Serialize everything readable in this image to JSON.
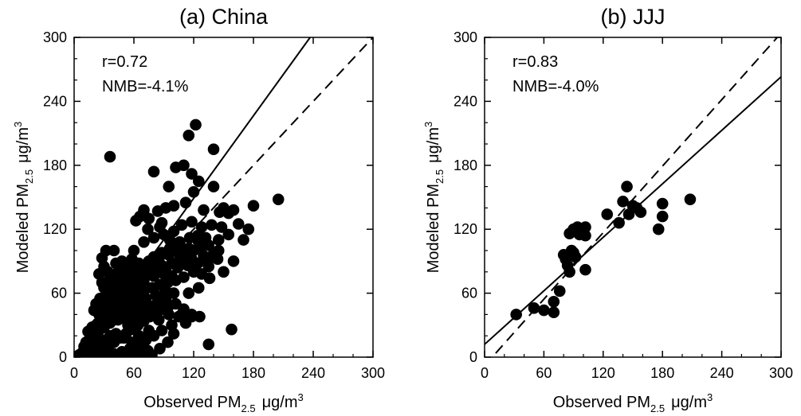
{
  "chart_data": [
    {
      "type": "scatter",
      "title": "(a) China",
      "xlabel": {
        "main": "Observed PM",
        "sub": "2.5",
        "unit": "μg/m",
        "sup": "3"
      },
      "ylabel": {
        "main": "Modeled PM",
        "sub": "2.5",
        "unit": "μg/m",
        "sup": "3"
      },
      "xlim": [
        0,
        300
      ],
      "ylim": [
        0,
        300
      ],
      "xticks": [
        "0",
        "60",
        "120",
        "180",
        "240",
        "300"
      ],
      "yticks": [
        "0",
        "60",
        "120",
        "180",
        "240",
        "300"
      ],
      "annotations": [
        "r=0.72",
        "NMB=-4.1%"
      ],
      "lines": [
        {
          "style": "solid",
          "points": [
            [
              0,
              -6
            ],
            [
              240,
              304
            ]
          ]
        },
        {
          "style": "dashed",
          "points": [
            [
              0,
              0
            ],
            [
              300,
              300
            ]
          ]
        }
      ],
      "points": [
        [
          36,
          188
        ],
        [
          122,
          218
        ],
        [
          115,
          208
        ],
        [
          140,
          195
        ],
        [
          110,
          180
        ],
        [
          102,
          178
        ],
        [
          118,
          172
        ],
        [
          80,
          174
        ],
        [
          95,
          160
        ],
        [
          125,
          165
        ],
        [
          140,
          160
        ],
        [
          120,
          155
        ],
        [
          205,
          148
        ],
        [
          180,
          142
        ],
        [
          160,
          138
        ],
        [
          150,
          140
        ],
        [
          146,
          136
        ],
        [
          155,
          135
        ],
        [
          130,
          138
        ],
        [
          112,
          145
        ],
        [
          100,
          142
        ],
        [
          92,
          140
        ],
        [
          84,
          137
        ],
        [
          70,
          138
        ],
        [
          66,
          132
        ],
        [
          62,
          128
        ],
        [
          75,
          130
        ],
        [
          88,
          126
        ],
        [
          108,
          124
        ],
        [
          118,
          127
        ],
        [
          128,
          122
        ],
        [
          138,
          124
        ],
        [
          148,
          122
        ],
        [
          175,
          120
        ],
        [
          170,
          110
        ],
        [
          145,
          110
        ],
        [
          135,
          105
        ],
        [
          125,
          108
        ],
        [
          115,
          102
        ],
        [
          105,
          98
        ],
        [
          95,
          96
        ],
        [
          85,
          92
        ],
        [
          75,
          90
        ],
        [
          65,
          88
        ],
        [
          55,
          85
        ],
        [
          45,
          82
        ],
        [
          40,
          100
        ],
        [
          32,
          100
        ],
        [
          28,
          93
        ],
        [
          30,
          85
        ],
        [
          25,
          78
        ],
        [
          28,
          70
        ],
        [
          35,
          72
        ],
        [
          42,
          75
        ],
        [
          50,
          78
        ],
        [
          58,
          80
        ],
        [
          68,
          82
        ],
        [
          78,
          84
        ],
        [
          88,
          86
        ],
        [
          98,
          88
        ],
        [
          108,
          90
        ],
        [
          118,
          92
        ],
        [
          130,
          95
        ],
        [
          140,
          97
        ],
        [
          90,
          78
        ],
        [
          80,
          76
        ],
        [
          70,
          72
        ],
        [
          60,
          70
        ],
        [
          52,
          66
        ],
        [
          45,
          64
        ],
        [
          38,
          60
        ],
        [
          32,
          58
        ],
        [
          26,
          55
        ],
        [
          22,
          50
        ],
        [
          20,
          44
        ],
        [
          25,
          40
        ],
        [
          30,
          38
        ],
        [
          35,
          42
        ],
        [
          40,
          46
        ],
        [
          48,
          50
        ],
        [
          55,
          54
        ],
        [
          62,
          58
        ],
        [
          70,
          62
        ],
        [
          78,
          65
        ],
        [
          86,
          68
        ],
        [
          94,
          70
        ],
        [
          102,
          72
        ],
        [
          110,
          75
        ],
        [
          120,
          80
        ],
        [
          128,
          78
        ],
        [
          136,
          74
        ],
        [
          150,
          80
        ],
        [
          160,
          90
        ],
        [
          100,
          60
        ],
        [
          92,
          55
        ],
        [
          84,
          52
        ],
        [
          76,
          48
        ],
        [
          68,
          45
        ],
        [
          60,
          42
        ],
        [
          52,
          38
        ],
        [
          44,
          35
        ],
        [
          36,
          32
        ],
        [
          30,
          28
        ],
        [
          25,
          25
        ],
        [
          20,
          22
        ],
        [
          16,
          18
        ],
        [
          12,
          14
        ],
        [
          10,
          10
        ],
        [
          14,
          6
        ],
        [
          20,
          4
        ],
        [
          28,
          6
        ],
        [
          34,
          10
        ],
        [
          40,
          14
        ],
        [
          46,
          18
        ],
        [
          52,
          22
        ],
        [
          58,
          26
        ],
        [
          64,
          30
        ],
        [
          70,
          34
        ],
        [
          76,
          38
        ],
        [
          82,
          42
        ],
        [
          88,
          45
        ],
        [
          95,
          48
        ],
        [
          102,
          50
        ],
        [
          110,
          45
        ],
        [
          118,
          40
        ],
        [
          126,
          38
        ],
        [
          112,
          32
        ],
        [
          98,
          30
        ],
        [
          88,
          25
        ],
        [
          80,
          20
        ],
        [
          72,
          16
        ],
        [
          64,
          12
        ],
        [
          56,
          8
        ],
        [
          48,
          5
        ],
        [
          40,
          3
        ],
        [
          32,
          2
        ],
        [
          24,
          2
        ],
        [
          8,
          4
        ],
        [
          5,
          2
        ],
        [
          18,
          10
        ],
        [
          22,
          30
        ],
        [
          26,
          48
        ],
        [
          30,
          65
        ],
        [
          34,
          80
        ],
        [
          60,
          100
        ],
        [
          70,
          108
        ],
        [
          80,
          112
        ],
        [
          90,
          115
        ],
        [
          100,
          118
        ],
        [
          74,
          120
        ],
        [
          86,
          122
        ],
        [
          96,
          110
        ],
        [
          106,
          108
        ],
        [
          116,
          112
        ],
        [
          124,
          114
        ],
        [
          132,
          112
        ],
        [
          58,
          92
        ],
        [
          48,
          90
        ],
        [
          42,
          88
        ],
        [
          36,
          50
        ],
        [
          44,
          56
        ],
        [
          50,
          60
        ],
        [
          56,
          64
        ],
        [
          62,
          66
        ],
        [
          66,
          74
        ],
        [
          72,
          78
        ],
        [
          82,
          80
        ],
        [
          92,
          82
        ],
        [
          104,
          84
        ],
        [
          114,
          86
        ],
        [
          124,
          88
        ],
        [
          134,
          90
        ],
        [
          144,
          92
        ],
        [
          65,
          20
        ],
        [
          75,
          25
        ],
        [
          85,
          35
        ],
        [
          95,
          40
        ],
        [
          105,
          38
        ],
        [
          115,
          60
        ],
        [
          125,
          65
        ],
        [
          135,
          85
        ],
        [
          145,
          100
        ],
        [
          155,
          115
        ],
        [
          165,
          125
        ],
        [
          158,
          26
        ],
        [
          135,
          12
        ],
        [
          118,
          38
        ],
        [
          108,
          40
        ],
        [
          92,
          62
        ],
        [
          82,
          58
        ],
        [
          72,
          55
        ],
        [
          64,
          50
        ],
        [
          54,
          46
        ],
        [
          46,
          42
        ],
        [
          38,
          40
        ],
        [
          30,
          36
        ],
        [
          24,
          32
        ],
        [
          18,
          28
        ],
        [
          14,
          24
        ],
        [
          42,
          22
        ],
        [
          50,
          18
        ],
        [
          58,
          14
        ],
        [
          66,
          10
        ],
        [
          74,
          6
        ],
        [
          36,
          20
        ],
        [
          28,
          16
        ],
        [
          22,
          14
        ],
        [
          62,
          4
        ],
        [
          54,
          0
        ],
        [
          46,
          0
        ],
        [
          38,
          0
        ],
        [
          30,
          0
        ],
        [
          22,
          0
        ],
        [
          14,
          0
        ],
        [
          70,
          0
        ],
        [
          78,
          2
        ],
        [
          86,
          8
        ],
        [
          94,
          14
        ],
        [
          100,
          22
        ],
        [
          60,
          36
        ],
        [
          54,
          30
        ],
        [
          68,
          40
        ],
        [
          76,
          44
        ],
        [
          84,
          56
        ],
        [
          90,
          66
        ],
        [
          98,
          76
        ],
        [
          106,
          92
        ],
        [
          112,
          96
        ],
        [
          120,
          100
        ],
        [
          128,
          104
        ],
        [
          44,
          70
        ],
        [
          40,
          66
        ],
        [
          48,
          74
        ],
        [
          56,
          76
        ],
        [
          64,
          84
        ],
        [
          72,
          86
        ],
        [
          80,
          94
        ],
        [
          88,
          98
        ],
        [
          96,
          102
        ],
        [
          104,
          104
        ]
      ]
    },
    {
      "type": "scatter",
      "title": "(b) JJJ",
      "xlabel": {
        "main": "Observed PM",
        "sub": "2.5",
        "unit": "μg/m",
        "sup": "3"
      },
      "ylabel": {
        "main": "Modeled PM",
        "sub": "2.5",
        "unit": "μg/m",
        "sup": "3"
      },
      "xlim": [
        0,
        300
      ],
      "ylim": [
        0,
        300
      ],
      "xticks": [
        "0",
        "60",
        "120",
        "180",
        "240",
        "300"
      ],
      "yticks": [
        "0",
        "60",
        "120",
        "180",
        "240",
        "300"
      ],
      "annotations": [
        "r=0.83",
        "NMB=-4.0%"
      ],
      "lines": [
        {
          "style": "solid",
          "points": [
            [
              0,
              12
            ],
            [
              300,
              263
            ]
          ]
        },
        {
          "style": "dashed",
          "points": [
            [
              0,
              -8
            ],
            [
              300,
              304
            ]
          ]
        }
      ],
      "points": [
        [
          32,
          40
        ],
        [
          50,
          46
        ],
        [
          60,
          44
        ],
        [
          70,
          42
        ],
        [
          70,
          52
        ],
        [
          76,
          62
        ],
        [
          80,
          96
        ],
        [
          82,
          92
        ],
        [
          84,
          86
        ],
        [
          86,
          80
        ],
        [
          88,
          100
        ],
        [
          90,
          98
        ],
        [
          92,
          94
        ],
        [
          86,
          116
        ],
        [
          90,
          120
        ],
        [
          94,
          122
        ],
        [
          98,
          120
        ],
        [
          102,
          122
        ],
        [
          96,
          115
        ],
        [
          102,
          114
        ],
        [
          102,
          82
        ],
        [
          124,
          134
        ],
        [
          136,
          126
        ],
        [
          140,
          146
        ],
        [
          144,
          160
        ],
        [
          146,
          134
        ],
        [
          150,
          142
        ],
        [
          154,
          140
        ],
        [
          158,
          136
        ],
        [
          176,
          120
        ],
        [
          180,
          132
        ],
        [
          180,
          144
        ],
        [
          208,
          148
        ]
      ]
    }
  ]
}
